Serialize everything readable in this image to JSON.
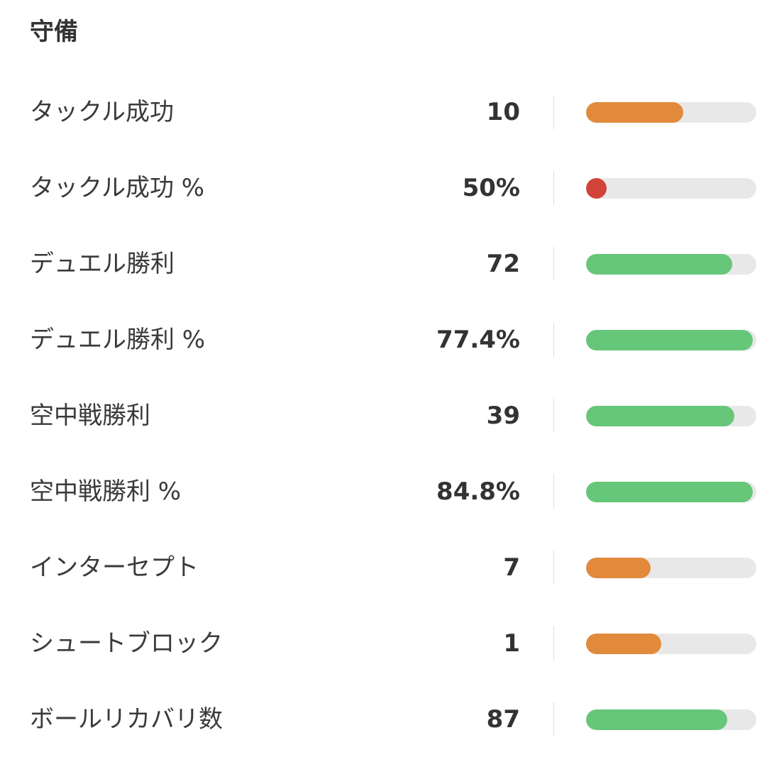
{
  "section": {
    "title": "守備"
  },
  "colors": {
    "good": "#66c67a",
    "average": "#e18a3b",
    "poor": "#d2433a",
    "track": "#e8e8e8"
  },
  "stats": [
    {
      "label": "タックル成功",
      "value": "10",
      "percentile": 0.57,
      "rating": "average"
    },
    {
      "label": "タックル成功 %",
      "value": "50%",
      "percentile": 0.12,
      "rating": "poor"
    },
    {
      "label": "デュエル勝利",
      "value": "72",
      "percentile": 0.86,
      "rating": "good"
    },
    {
      "label": "デュエル勝利 %",
      "value": "77.4%",
      "percentile": 0.98,
      "rating": "good"
    },
    {
      "label": "空中戦勝利",
      "value": "39",
      "percentile": 0.87,
      "rating": "good"
    },
    {
      "label": "空中戦勝利 %",
      "value": "84.8%",
      "percentile": 0.98,
      "rating": "good"
    },
    {
      "label": "インターセプト",
      "value": "7",
      "percentile": 0.38,
      "rating": "average"
    },
    {
      "label": "シュートブロック",
      "value": "1",
      "percentile": 0.44,
      "rating": "average"
    },
    {
      "label": "ボールリカバリ数",
      "value": "87",
      "percentile": 0.83,
      "rating": "good"
    }
  ]
}
